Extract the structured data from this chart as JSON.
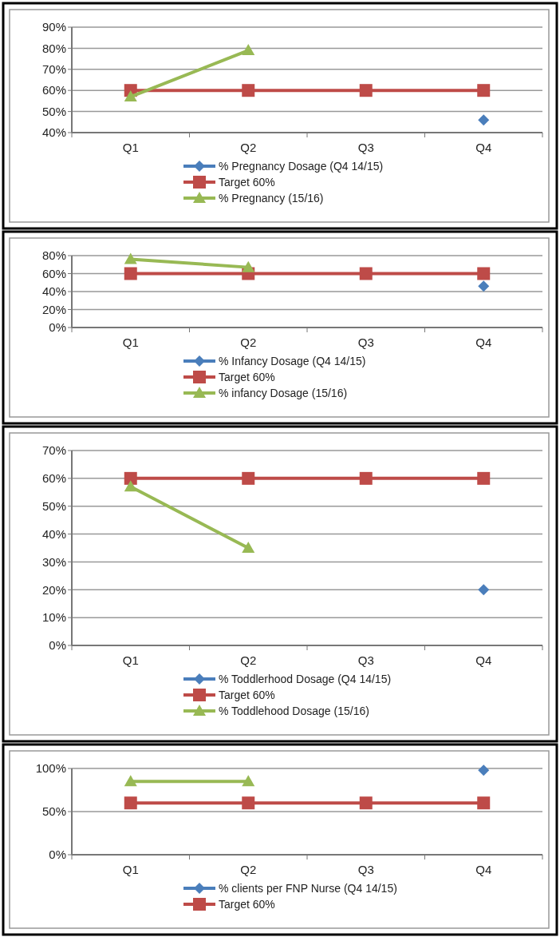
{
  "chart_data": [
    {
      "type": "line",
      "categories": [
        "Q1",
        "Q2",
        "Q3",
        "Q4"
      ],
      "ylim": [
        40,
        90
      ],
      "yticks": [
        {
          "value": 40,
          "label": "40%"
        },
        {
          "value": 50,
          "label": "50%"
        },
        {
          "value": 60,
          "label": "60%"
        },
        {
          "value": 70,
          "label": "70%"
        },
        {
          "value": 80,
          "label": "80%"
        },
        {
          "value": 90,
          "label": "90%"
        }
      ],
      "grid": "y",
      "legend": "bottom",
      "series": [
        {
          "name": "% Pregnancy Dosage (Q4 14/15)",
          "color": "#4a7ebb",
          "marker": "diamond",
          "values": [
            null,
            null,
            null,
            46
          ]
        },
        {
          "name": "Target 60%",
          "color": "#be4b48",
          "marker": "square",
          "values": [
            60,
            60,
            60,
            60
          ]
        },
        {
          "name": "% Pregnancy (15/16)",
          "color": "#98b954",
          "marker": "triangle",
          "values": [
            57,
            79,
            null,
            null
          ]
        }
      ]
    },
    {
      "type": "line",
      "categories": [
        "Q1",
        "Q2",
        "Q3",
        "Q4"
      ],
      "ylim": [
        0,
        80
      ],
      "yticks": [
        {
          "value": 0,
          "label": "0%"
        },
        {
          "value": 20,
          "label": "20%"
        },
        {
          "value": 40,
          "label": "40%"
        },
        {
          "value": 60,
          "label": "60%"
        },
        {
          "value": 80,
          "label": "80%"
        }
      ],
      "grid": "y",
      "legend": "bottom",
      "series": [
        {
          "name": "% Infancy Dosage (Q4 14/15)",
          "color": "#4a7ebb",
          "marker": "diamond",
          "values": [
            null,
            null,
            null,
            46
          ]
        },
        {
          "name": "Target 60%",
          "color": "#be4b48",
          "marker": "square",
          "values": [
            60,
            60,
            60,
            60
          ]
        },
        {
          "name": "% infancy Dosage (15/16)",
          "color": "#98b954",
          "marker": "triangle",
          "values": [
            76,
            67,
            null,
            null
          ]
        }
      ]
    },
    {
      "type": "line",
      "categories": [
        "Q1",
        "Q2",
        "Q3",
        "Q4"
      ],
      "ylim": [
        0,
        70
      ],
      "yticks": [
        {
          "value": 0,
          "label": "0%"
        },
        {
          "value": 10,
          "label": "10%"
        },
        {
          "value": 20,
          "label": "20%"
        },
        {
          "value": 30,
          "label": "30%"
        },
        {
          "value": 40,
          "label": "40%"
        },
        {
          "value": 50,
          "label": "50%"
        },
        {
          "value": 60,
          "label": "60%"
        },
        {
          "value": 70,
          "label": "70%"
        }
      ],
      "grid": "y",
      "legend": "bottom",
      "series": [
        {
          "name": "% Toddlerhood Dosage (Q4 14/15)",
          "color": "#4a7ebb",
          "marker": "diamond",
          "values": [
            null,
            null,
            null,
            20
          ]
        },
        {
          "name": "Target 60%",
          "color": "#be4b48",
          "marker": "square",
          "values": [
            60,
            60,
            60,
            60
          ]
        },
        {
          "name": "% Toddlehood Dosage (15/16)",
          "color": "#98b954",
          "marker": "triangle",
          "values": [
            57,
            35,
            null,
            null
          ]
        }
      ]
    },
    {
      "type": "line",
      "categories": [
        "Q1",
        "Q2",
        "Q3",
        "Q4"
      ],
      "ylim": [
        0,
        100
      ],
      "yticks": [
        {
          "value": 0,
          "label": "0%"
        },
        {
          "value": 50,
          "label": "50%"
        },
        {
          "value": 100,
          "label": "100%"
        }
      ],
      "grid": "y",
      "legend": "bottom",
      "series": [
        {
          "name": "% clients per FNP Nurse (Q4 14/15)",
          "color": "#4a7ebb",
          "marker": "diamond",
          "values": [
            null,
            null,
            null,
            98
          ]
        },
        {
          "name": "Target 60%",
          "color": "#be4b48",
          "marker": "square",
          "values": [
            60,
            60,
            60,
            60
          ]
        },
        {
          "color": "#98b954",
          "marker": "triangle",
          "values": [
            85,
            85,
            null,
            null
          ]
        }
      ]
    }
  ]
}
